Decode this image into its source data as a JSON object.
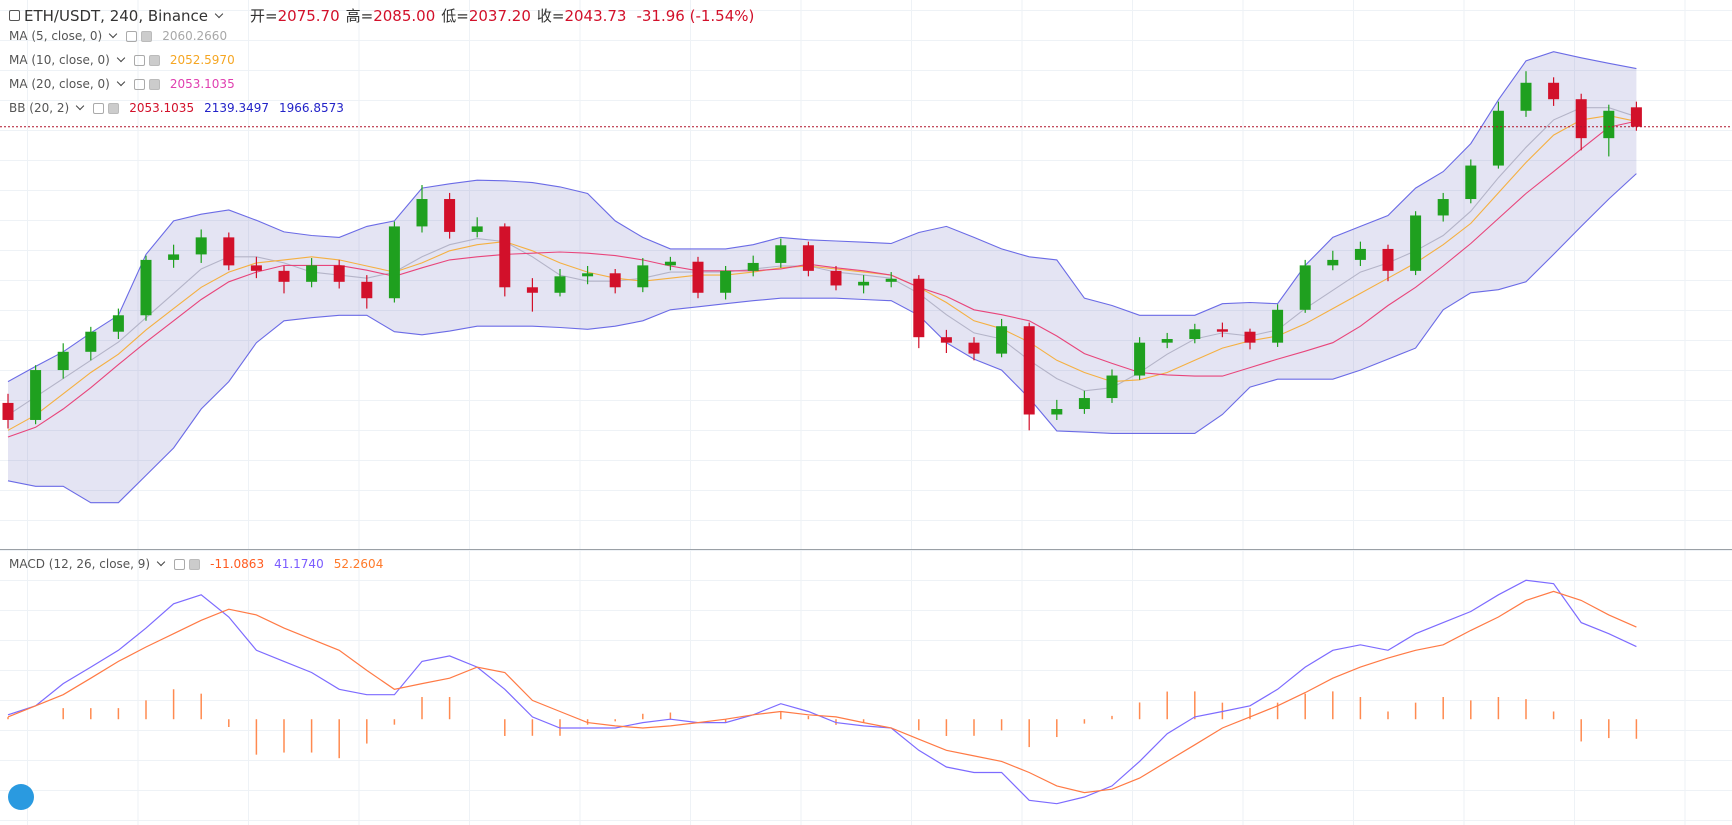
{
  "header": {
    "symbol": "ETH/USDT, 240, Binance",
    "color": "#d2102a",
    "ohlc": [
      {
        "key": "开=",
        "value": "2075.70"
      },
      {
        "key": "高=",
        "value": "2085.00"
      },
      {
        "key": "低=",
        "value": "2037.20"
      },
      {
        "key": "收=",
        "value": "2043.73"
      }
    ],
    "change": "-31.96 (-1.54%)"
  },
  "chart_data": [
    {
      "type": "candlestick",
      "ylim": [
        1350,
        2252
      ],
      "up_color": "#1fa01f",
      "down_color": "#d2102a",
      "price_line": true,
      "price_line_color": "#b0132b",
      "legend": [
        {
          "name": "MA (5, close, 0)",
          "values": [
            "2060.2660"
          ],
          "colors": [
            "#a8a8a8"
          ]
        },
        {
          "name": "MA (10, close, 0)",
          "values": [
            "2052.5970"
          ],
          "colors": [
            "#f5a623"
          ]
        },
        {
          "name": "MA (20, close, 0)",
          "values": [
            "2053.1035"
          ],
          "colors": [
            "#e040b0"
          ]
        },
        {
          "name": "BB (20, 2)",
          "values": [
            "2053.1035",
            "2139.3497",
            "1966.8573"
          ],
          "colors": [
            "#d2102a",
            "#2323c8",
            "#2323c8"
          ]
        }
      ],
      "candles": [
        [
          1590,
          1605,
          1548,
          1562
        ],
        [
          1562,
          1652,
          1555,
          1644
        ],
        [
          1644,
          1688,
          1630,
          1674
        ],
        [
          1674,
          1715,
          1660,
          1707
        ],
        [
          1707,
          1745,
          1695,
          1734
        ],
        [
          1734,
          1832,
          1725,
          1825
        ],
        [
          1825,
          1850,
          1812,
          1834
        ],
        [
          1834,
          1875,
          1820,
          1862
        ],
        [
          1862,
          1870,
          1808,
          1816
        ],
        [
          1816,
          1830,
          1795,
          1807
        ],
        [
          1807,
          1815,
          1770,
          1789
        ],
        [
          1789,
          1828,
          1780,
          1816
        ],
        [
          1816,
          1825,
          1778,
          1789
        ],
        [
          1789,
          1800,
          1745,
          1762
        ],
        [
          1762,
          1888,
          1755,
          1880
        ],
        [
          1880,
          1948,
          1870,
          1925
        ],
        [
          1925,
          1935,
          1860,
          1871
        ],
        [
          1871,
          1895,
          1862,
          1880
        ],
        [
          1880,
          1885,
          1765,
          1780
        ],
        [
          1780,
          1795,
          1740,
          1771
        ],
        [
          1771,
          1810,
          1765,
          1798
        ],
        [
          1798,
          1815,
          1785,
          1803
        ],
        [
          1803,
          1810,
          1770,
          1780
        ],
        [
          1780,
          1828,
          1772,
          1816
        ],
        [
          1816,
          1830,
          1808,
          1822
        ],
        [
          1822,
          1830,
          1762,
          1771
        ],
        [
          1771,
          1815,
          1760,
          1807
        ],
        [
          1807,
          1832,
          1798,
          1820
        ],
        [
          1820,
          1860,
          1812,
          1849
        ],
        [
          1849,
          1855,
          1798,
          1807
        ],
        [
          1807,
          1815,
          1775,
          1783
        ],
        [
          1783,
          1800,
          1770,
          1789
        ],
        [
          1789,
          1805,
          1780,
          1794
        ],
        [
          1794,
          1800,
          1680,
          1698
        ],
        [
          1698,
          1710,
          1672,
          1689
        ],
        [
          1689,
          1698,
          1660,
          1671
        ],
        [
          1671,
          1728,
          1665,
          1716
        ],
        [
          1716,
          1722,
          1545,
          1571
        ],
        [
          1571,
          1595,
          1562,
          1580
        ],
        [
          1580,
          1610,
          1572,
          1598
        ],
        [
          1598,
          1645,
          1590,
          1635
        ],
        [
          1635,
          1698,
          1628,
          1689
        ],
        [
          1689,
          1705,
          1680,
          1695
        ],
        [
          1695,
          1720,
          1688,
          1711
        ],
        [
          1711,
          1722,
          1698,
          1707
        ],
        [
          1707,
          1712,
          1678,
          1689
        ],
        [
          1689,
          1752,
          1682,
          1743
        ],
        [
          1743,
          1825,
          1738,
          1816
        ],
        [
          1816,
          1840,
          1808,
          1825
        ],
        [
          1825,
          1855,
          1815,
          1843
        ],
        [
          1843,
          1850,
          1790,
          1807
        ],
        [
          1807,
          1905,
          1800,
          1898
        ],
        [
          1898,
          1935,
          1888,
          1925
        ],
        [
          1925,
          1990,
          1918,
          1980
        ],
        [
          1980,
          2085,
          1975,
          2070
        ],
        [
          2070,
          2135,
          2060,
          2116
        ],
        [
          2116,
          2125,
          2078,
          2089
        ],
        [
          2089,
          2098,
          2005,
          2025
        ],
        [
          2025,
          2080,
          1995,
          2070
        ],
        [
          2075.7,
          2085,
          2037.2,
          2043.73
        ]
      ],
      "bands": {
        "line_color": "#6b6be6",
        "fill": "rgba(118,118,196,0.2)",
        "upper": [
          1625,
          1650,
          1674,
          1705,
          1734,
          1834,
          1889,
          1900,
          1907,
          1890,
          1871,
          1865,
          1862,
          1880,
          1889,
          1943,
          1950,
          1956,
          1955,
          1952,
          1945,
          1934,
          1889,
          1862,
          1843,
          1843,
          1843,
          1850,
          1862,
          1858,
          1856,
          1854,
          1852,
          1870,
          1880,
          1862,
          1843,
          1830,
          1825,
          1762,
          1750,
          1734,
          1734,
          1734,
          1753,
          1755,
          1753,
          1816,
          1862,
          1880,
          1898,
          1943,
          1970,
          2016,
          2088,
          2152,
          2167,
          2157,
          2148,
          2139.3497
        ],
        "lower": [
          1462,
          1453,
          1453,
          1426,
          1426,
          1471,
          1516,
          1580,
          1625,
          1689,
          1725,
          1730,
          1734,
          1734,
          1707,
          1702,
          1708,
          1716,
          1716,
          1716,
          1714,
          1711,
          1716,
          1725,
          1743,
          1748,
          1753,
          1758,
          1762,
          1762,
          1762,
          1760,
          1758,
          1734,
          1689,
          1662,
          1644,
          1598,
          1544,
          1542,
          1540,
          1540,
          1540,
          1540,
          1571,
          1616,
          1629,
          1629,
          1629,
          1644,
          1662,
          1680,
          1743,
          1771,
          1776,
          1789,
          1834,
          1880,
          1925,
          1966.8573
        ]
      },
      "series": [
        {
          "color": "#b4b4c8",
          "values": [
            1570,
            1600,
            1630,
            1660,
            1690,
            1730,
            1770,
            1810,
            1830,
            1830,
            1820,
            1805,
            1800,
            1795,
            1805,
            1830,
            1850,
            1860,
            1855,
            1830,
            1800,
            1790,
            1790,
            1795,
            1805,
            1805,
            1805,
            1810,
            1815,
            1815,
            1805,
            1800,
            1795,
            1770,
            1735,
            1705,
            1695,
            1660,
            1630,
            1610,
            1615,
            1640,
            1670,
            1695,
            1705,
            1700,
            1710,
            1745,
            1775,
            1805,
            1820,
            1840,
            1865,
            1905,
            1960,
            2010,
            2055,
            2075,
            2075,
            2060.266
          ]
        },
        {
          "color": "#f5b041",
          "values": [
            1545,
            1570,
            1605,
            1640,
            1670,
            1710,
            1745,
            1780,
            1805,
            1820,
            1825,
            1830,
            1825,
            1815,
            1805,
            1820,
            1840,
            1850,
            1855,
            1840,
            1820,
            1805,
            1795,
            1790,
            1795,
            1800,
            1800,
            1805,
            1812,
            1815,
            1810,
            1805,
            1800,
            1780,
            1755,
            1725,
            1712,
            1690,
            1660,
            1640,
            1625,
            1628,
            1640,
            1660,
            1680,
            1692,
            1700,
            1720,
            1745,
            1770,
            1795,
            1820,
            1850,
            1885,
            1935,
            1985,
            2030,
            2055,
            2062,
            2052.597
          ]
        },
        {
          "color": "#e8457b",
          "values": [
            1534,
            1550,
            1580,
            1615,
            1653,
            1690,
            1725,
            1760,
            1789,
            1805,
            1816,
            1816,
            1816,
            1808,
            1798,
            1812,
            1825,
            1830,
            1834,
            1836,
            1838,
            1836,
            1832,
            1825,
            1815,
            1807,
            1807,
            1807,
            1810,
            1818,
            1812,
            1807,
            1800,
            1780,
            1765,
            1743,
            1735,
            1725,
            1700,
            1671,
            1655,
            1640,
            1636,
            1634,
            1634,
            1648,
            1662,
            1675,
            1689,
            1716,
            1750,
            1780,
            1815,
            1852,
            1893,
            1934,
            1970,
            2007,
            2043,
            2053.1035
          ]
        }
      ]
    },
    {
      "type": "macd",
      "ylim": [
        -60,
        96
      ],
      "legend": [
        {
          "name": "MACD (12, 26, close, 9)",
          "values": [
            "-11.0863",
            "41.1740",
            "52.2604"
          ],
          "colors": [
            "#ff5a1f",
            "#7b5cff",
            "#ff7a2a"
          ]
        }
      ],
      "series": [
        {
          "style": "histogram",
          "color": "#ff8a50",
          "values": [
            1.2,
            0,
            6.3,
            6.3,
            6.3,
            10.7,
            17,
            14.5,
            -4.4,
            -20.1,
            -18.9,
            -18.9,
            -22.1,
            -13.8,
            -3.1,
            12.6,
            12.6,
            0,
            -9.5,
            -9.4,
            -9.4,
            -3.1,
            -1.2,
            3.1,
            3.8,
            0,
            -1.9,
            0,
            4.4,
            1.9,
            -3.2,
            -1.9,
            0,
            -6.3,
            -9.5,
            -9.4,
            -6.3,
            -15.8,
            -10.1,
            -2.5,
            1.9,
            9.5,
            15.7,
            15.8,
            9.4,
            6.3,
            9.4,
            14.5,
            15.8,
            12.6,
            4.4,
            9.4,
            12.6,
            10.7,
            12.6,
            11.4,
            4.4,
            -12.6,
            -10.7,
            -11.0863
          ]
        },
        {
          "style": "line",
          "color": "#7d6bff",
          "values": [
            2.5,
            7.6,
            20.2,
            29.6,
            39.1,
            51.7,
            65.5,
            70.6,
            58,
            39.1,
            32.8,
            26.5,
            17,
            13.9,
            13.9,
            32.8,
            35.9,
            29.6,
            17,
            1.3,
            -5,
            -5,
            -5,
            -1.9,
            0,
            -1.9,
            -1.9,
            2.5,
            8.8,
            4.4,
            -1.9,
            -3.8,
            -5,
            -17.6,
            -27.1,
            -30.2,
            -30.2,
            -46,
            -47.9,
            -44.1,
            -37.8,
            -23.9,
            -8.2,
            1.3,
            4.4,
            7.6,
            17,
            29.6,
            39.1,
            42.2,
            39.1,
            48.5,
            54.8,
            61.1,
            70.6,
            78.8,
            76.9,
            54.8,
            48.5,
            41.174
          ]
        },
        {
          "style": "line",
          "color": "#ff7a45",
          "values": [
            1.3,
            7.6,
            13.9,
            23.3,
            32.8,
            41,
            48.5,
            56.1,
            62.4,
            59.2,
            51.7,
            45.4,
            39.1,
            27.7,
            17,
            20.2,
            23.3,
            29.6,
            26.5,
            10.7,
            4.4,
            -1.9,
            -3.8,
            -5,
            -3.8,
            -1.9,
            0,
            2.5,
            4.4,
            2.5,
            1.3,
            -1.9,
            -5,
            -11.3,
            -17.6,
            -20.8,
            -23.9,
            -30.2,
            -37.8,
            -41.6,
            -39.7,
            -33.4,
            -23.9,
            -14.5,
            -5,
            1.3,
            7.6,
            15.1,
            23.3,
            29.6,
            34.7,
            39.1,
            42.2,
            50.4,
            58,
            67.4,
            72.5,
            67.4,
            59.2,
            52.2604
          ]
        }
      ]
    }
  ]
}
